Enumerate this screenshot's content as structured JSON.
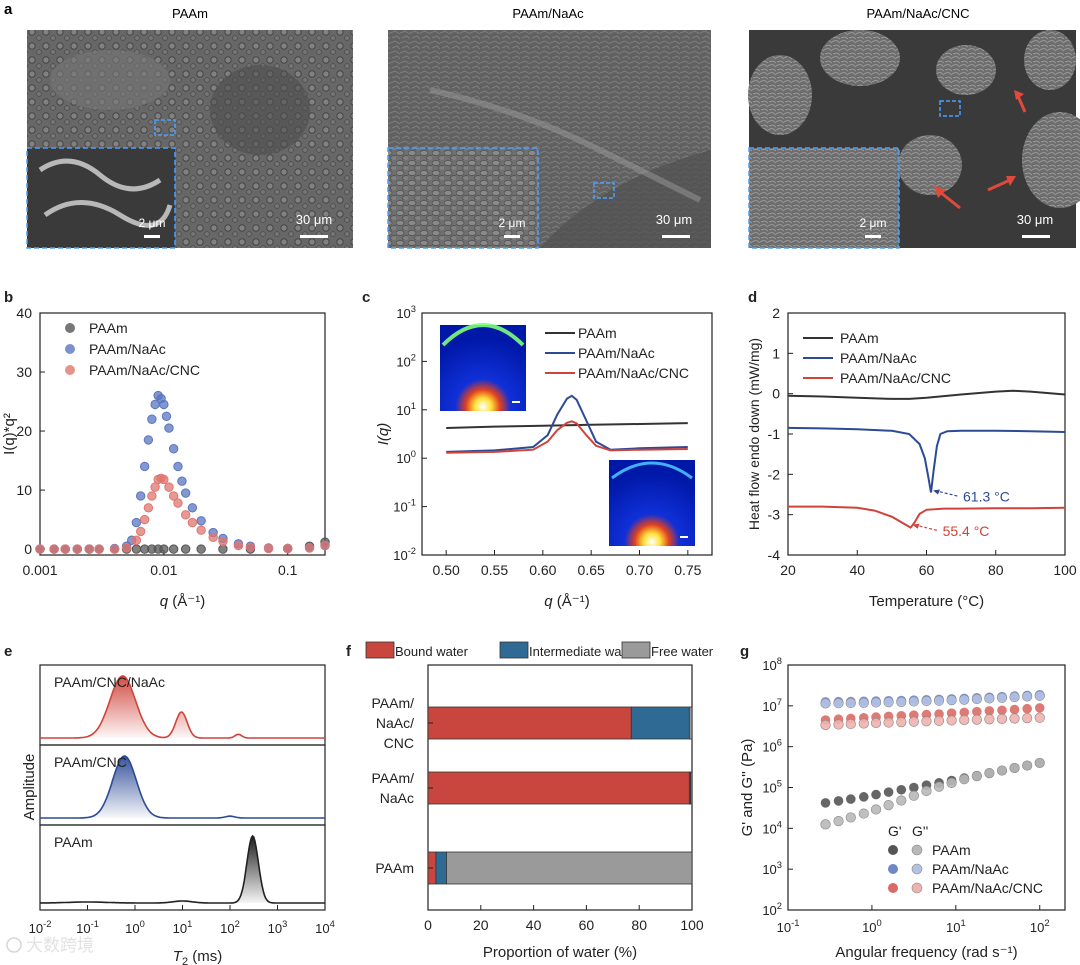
{
  "figure": {
    "panel_a": {
      "label": "a",
      "images": [
        {
          "title": "PAAm",
          "inset_scale": "2 μm",
          "scale": "30 μm"
        },
        {
          "title": "PAAm/NaAc",
          "inset_scale": "2 μm",
          "scale": "30 μm"
        },
        {
          "title": "PAAm/NaAc/CNC",
          "inset_scale": "2 μm",
          "scale": "30 μm"
        }
      ]
    },
    "watermark": "大数跨境"
  },
  "chart_data": [
    {
      "id": "b",
      "type": "scatter",
      "label": "b",
      "xlabel_italic": "q",
      "xlabel_unit": " (Å⁻¹)",
      "ylabel": "I(q)*q²",
      "xscale": "log",
      "xlim": [
        0.001,
        0.2
      ],
      "ylim": [
        -1,
        40
      ],
      "xticks": [
        {
          "v": 0.001,
          "t": "0.001"
        },
        {
          "v": 0.01,
          "t": "0.01"
        },
        {
          "v": 0.1,
          "t": "0.1"
        }
      ],
      "yticks": [
        0,
        10,
        20,
        30,
        40
      ],
      "legend": [
        "PAAm",
        "PAAm/NaAc",
        "PAAm/NaAc/CNC"
      ],
      "colors": [
        "#555555",
        "#5a76c0",
        "#e0766e"
      ],
      "series": [
        {
          "name": "PAAm",
          "x": [
            0.001,
            0.0013,
            0.0016,
            0.002,
            0.0025,
            0.003,
            0.004,
            0.005,
            0.006,
            0.007,
            0.008,
            0.009,
            0.01,
            0.012,
            0.015,
            0.02,
            0.03,
            0.05,
            0.1,
            0.15,
            0.2
          ],
          "y": [
            0,
            0,
            0,
            0,
            0,
            0,
            0,
            0,
            0,
            0,
            0,
            0,
            0,
            0,
            0,
            0,
            0,
            0,
            0.1,
            0.5,
            1.2
          ]
        },
        {
          "name": "PAAm/NaAc",
          "x": [
            0.001,
            0.0013,
            0.0016,
            0.002,
            0.0025,
            0.003,
            0.004,
            0.005,
            0.0055,
            0.006,
            0.0065,
            0.007,
            0.0075,
            0.008,
            0.0085,
            0.009,
            0.0095,
            0.01,
            0.0105,
            0.011,
            0.012,
            0.013,
            0.014,
            0.015,
            0.017,
            0.02,
            0.025,
            0.03,
            0.04,
            0.05,
            0.07,
            0.1,
            0.15,
            0.2
          ],
          "y": [
            0,
            0,
            0,
            0,
            0,
            0,
            0.1,
            0.5,
            1.5,
            4.5,
            9,
            14,
            18.5,
            22,
            24.5,
            26,
            25.5,
            24.5,
            22.5,
            20.5,
            17,
            14,
            11.5,
            9.5,
            7,
            4.8,
            2.8,
            1.8,
            0.9,
            0.5,
            0.2,
            0.1,
            0.2,
            0.6
          ]
        },
        {
          "name": "PAAm/NaAc/CNC",
          "x": [
            0.001,
            0.0013,
            0.0016,
            0.002,
            0.0025,
            0.003,
            0.004,
            0.005,
            0.006,
            0.0065,
            0.007,
            0.0075,
            0.008,
            0.0085,
            0.009,
            0.0095,
            0.01,
            0.011,
            0.012,
            0.013,
            0.015,
            0.017,
            0.02,
            0.025,
            0.03,
            0.04,
            0.05,
            0.07,
            0.1,
            0.15,
            0.2
          ],
          "y": [
            0,
            0,
            0,
            0,
            0,
            0,
            0,
            0.2,
            1.5,
            3,
            5,
            7,
            9,
            10.5,
            11.8,
            12,
            11.8,
            10.5,
            9,
            7.8,
            5.8,
            4.5,
            3.2,
            2,
            1.3,
            0.6,
            0.3,
            0.1,
            0.1,
            0.2,
            0.6
          ]
        }
      ]
    },
    {
      "id": "c",
      "type": "line",
      "label": "c",
      "xlabel_italic": "q",
      "xlabel_unit": " (Å⁻¹)",
      "ylabel": "I(q)",
      "yscale": "log",
      "xlim": [
        0.475,
        0.775
      ],
      "ylim": [
        0.01,
        1000
      ],
      "xticks": [
        0.5,
        0.55,
        0.6,
        0.65,
        0.7,
        0.75
      ],
      "yticks": [
        {
          "v": 0.01,
          "b": "10",
          "e": "-2"
        },
        {
          "v": 0.1,
          "b": "10",
          "e": "-1"
        },
        {
          "v": 1,
          "b": "10",
          "e": "0"
        },
        {
          "v": 10,
          "b": "10",
          "e": "1"
        },
        {
          "v": 100,
          "b": "10",
          "e": "2"
        },
        {
          "v": 1000,
          "b": "10",
          "e": "3"
        }
      ],
      "legend": [
        "PAAm",
        "PAAm/NaAc",
        "PAAm/NaAc/CNC"
      ],
      "colors": [
        "#333333",
        "#2c4a96",
        "#d0433a"
      ],
      "series": [
        {
          "name": "PAAm",
          "x": [
            0.5,
            0.55,
            0.6,
            0.65,
            0.7,
            0.75
          ],
          "y": [
            4.2,
            4.5,
            4.7,
            4.9,
            5.1,
            5.3
          ]
        },
        {
          "name": "PAAm/NaAc",
          "x": [
            0.5,
            0.55,
            0.59,
            0.605,
            0.615,
            0.625,
            0.63,
            0.635,
            0.645,
            0.655,
            0.67,
            0.7,
            0.75
          ],
          "y": [
            1.35,
            1.45,
            1.7,
            3,
            8,
            17,
            19.5,
            16,
            6,
            2.2,
            1.5,
            1.6,
            1.7
          ]
        },
        {
          "name": "PAAm/NaAc/CNC",
          "x": [
            0.5,
            0.55,
            0.59,
            0.605,
            0.615,
            0.625,
            0.63,
            0.635,
            0.645,
            0.655,
            0.67,
            0.7,
            0.75
          ],
          "y": [
            1.3,
            1.35,
            1.5,
            2.2,
            3.8,
            5.4,
            5.8,
            5.2,
            3,
            1.8,
            1.45,
            1.5,
            1.55
          ]
        }
      ]
    },
    {
      "id": "d",
      "type": "line",
      "label": "d",
      "xlabel": "Temperature (°C)",
      "ylabel": "Heat flow endo down (mW/mg)",
      "xlim": [
        20,
        100
      ],
      "ylim": [
        -4,
        2
      ],
      "xticks": [
        20,
        40,
        60,
        80,
        100
      ],
      "yticks": [
        -4,
        -3,
        -2,
        -1,
        0,
        1,
        2
      ],
      "legend": [
        "PAAm",
        "PAAm/NaAc",
        "PAAm/NaAc/CNC"
      ],
      "colors": [
        "#333333",
        "#2c4a96",
        "#d0433a"
      ],
      "annotations": [
        {
          "text": "61.3 °C",
          "x": 61.3,
          "y": -2.45,
          "color": "#2c4a96"
        },
        {
          "text": "55.4 °C",
          "x": 55.4,
          "y": -3.3,
          "color": "#d0433a"
        }
      ],
      "series": [
        {
          "name": "PAAm",
          "x": [
            20,
            30,
            40,
            50,
            55,
            60,
            70,
            80,
            85,
            90,
            100
          ],
          "y": [
            -0.05,
            -0.07,
            -0.1,
            -0.13,
            -0.13,
            -0.1,
            -0.02,
            0.05,
            0.07,
            0.05,
            -0.02
          ]
        },
        {
          "name": "PAAm/NaAc",
          "x": [
            20,
            30,
            40,
            50,
            55,
            58,
            59.5,
            60.5,
            61.3,
            62,
            63,
            64,
            66,
            70,
            80,
            90,
            100
          ],
          "y": [
            -0.85,
            -0.86,
            -0.88,
            -0.92,
            -1.0,
            -1.25,
            -1.6,
            -2.05,
            -2.45,
            -1.95,
            -1.3,
            -1.0,
            -0.93,
            -0.92,
            -0.92,
            -0.93,
            -0.95
          ]
        },
        {
          "name": "PAAm/NaAc/CNC",
          "x": [
            20,
            30,
            40,
            45,
            50,
            53,
            55.4,
            56.5,
            58,
            60,
            65,
            70,
            80,
            90,
            100
          ],
          "y": [
            -2.8,
            -2.8,
            -2.83,
            -2.9,
            -3.05,
            -3.2,
            -3.32,
            -3.2,
            -2.98,
            -2.88,
            -2.85,
            -2.85,
            -2.84,
            -2.84,
            -2.83
          ]
        }
      ]
    },
    {
      "id": "e",
      "type": "area",
      "label": "e",
      "xlabel_italic": "T",
      "xlabel_sub": "2",
      "xlabel_unit": " (ms)",
      "ylabel": "Amplitude",
      "xscale": "log",
      "xlim": [
        0.01,
        10000
      ],
      "xticks": [
        {
          "v": 0.01,
          "b": "10",
          "e": "-2"
        },
        {
          "v": 0.1,
          "b": "10",
          "e": "-1"
        },
        {
          "v": 1,
          "b": "10",
          "e": "0"
        },
        {
          "v": 10,
          "b": "10",
          "e": "1"
        },
        {
          "v": 100,
          "b": "10",
          "e": "2"
        },
        {
          "v": 1000,
          "b": "10",
          "e": "3"
        },
        {
          "v": 10000,
          "b": "10",
          "e": "4"
        }
      ],
      "subplots": [
        {
          "name": "PAAm/CNC/NaAc",
          "color": "#d0433a",
          "peaks": [
            {
              "center": 0.55,
              "height": 1.0,
              "width": 0.27
            },
            {
              "center": 9.5,
              "height": 0.42,
              "width": 0.12
            },
            {
              "center": 150,
              "height": 0.06,
              "width": 0.07
            }
          ]
        },
        {
          "name": "PAAm/CNC",
          "color": "#2c4a96",
          "peaks": [
            {
              "center": 0.6,
              "height": 1.0,
              "width": 0.25
            },
            {
              "center": 100,
              "height": 0.03,
              "width": 0.1
            }
          ]
        },
        {
          "name": "PAAm",
          "color": "#222222",
          "peaks": [
            {
              "center": 300,
              "height": 1.0,
              "width": 0.12
            },
            {
              "center": 10,
              "height": 0.03,
              "width": 0.2
            },
            {
              "center": 0.1,
              "height": 0.015,
              "width": 0.4
            }
          ]
        }
      ]
    },
    {
      "id": "f",
      "type": "bar",
      "label": "f",
      "orientation": "horizontal",
      "stacked": true,
      "xlabel": "Proportion of water (%)",
      "xlim": [
        0,
        100
      ],
      "xticks": [
        0,
        20,
        40,
        60,
        80,
        100
      ],
      "categories": [
        [
          "PAAm/",
          "NaAc/",
          "CNC"
        ],
        [
          "PAAm/",
          "NaAc"
        ],
        [
          "PAAm"
        ]
      ],
      "legend": [
        "Bound water",
        "Intermediate water",
        "Free water"
      ],
      "colors": [
        "#c8463e",
        "#2e6a93",
        "#9a9a9a"
      ],
      "series": [
        {
          "name": "Bound water",
          "values": [
            77,
            99,
            3
          ]
        },
        {
          "name": "Intermediate water",
          "values": [
            22,
            0.5,
            4
          ]
        },
        {
          "name": "Free water",
          "values": [
            1,
            0.5,
            93
          ]
        }
      ]
    },
    {
      "id": "g",
      "type": "scatter",
      "label": "g",
      "xlabel": "Angular frequency (rad s⁻¹)",
      "ylabel": "G' and G'' (Pa)",
      "xscale": "log",
      "yscale": "log",
      "xlim": [
        0.1,
        200
      ],
      "ylim": [
        100,
        100000000
      ],
      "xticks": [
        {
          "v": 0.1,
          "b": "10",
          "e": "-1"
        },
        {
          "v": 1,
          "b": "10",
          "e": "0"
        },
        {
          "v": 10,
          "b": "10",
          "e": "1"
        },
        {
          "v": 100,
          "b": "10",
          "e": "2"
        }
      ],
      "yticks": [
        {
          "v": 100,
          "b": "10",
          "e": "2"
        },
        {
          "v": 1000,
          "b": "10",
          "e": "3"
        },
        {
          "v": 10000,
          "b": "10",
          "e": "4"
        },
        {
          "v": 100000,
          "b": "10",
          "e": "5"
        },
        {
          "v": 1000000,
          "b": "10",
          "e": "6"
        },
        {
          "v": 10000000,
          "b": "10",
          "e": "7"
        },
        {
          "v": 100000000,
          "b": "10",
          "e": "8"
        }
      ],
      "legend_header": [
        "G'",
        "G''"
      ],
      "legend": [
        "PAAm",
        "PAAm/NaAc",
        "PAAm/NaAc/CNC"
      ],
      "colors": [
        "#555555",
        "#6f86c8",
        "#d96b66"
      ],
      "colors_light": [
        "#b8b8b8",
        "#b3c1e6",
        "#efb2ae"
      ],
      "omega": [
        0.28,
        0.4,
        0.56,
        0.8,
        1.12,
        1.58,
        2.24,
        3.16,
        4.47,
        6.31,
        8.91,
        12.6,
        17.8,
        25.1,
        35.5,
        50.1,
        70.8,
        100
      ],
      "series": [
        {
          "name": "PAAm G'",
          "values": [
            42000,
            47000,
            52000,
            59000,
            67000,
            77000,
            88000,
            100000,
            114000,
            130000,
            148000,
            170000,
            195000,
            225000,
            260000,
            300000,
            345000,
            400000
          ]
        },
        {
          "name": "PAAm G''",
          "values": [
            12500,
            15000,
            18500,
            23000,
            29000,
            37000,
            48000,
            63000,
            82000,
            105000,
            130000,
            160000,
            190000,
            225000,
            260000,
            300000,
            345000,
            400000
          ]
        },
        {
          "name": "PAAm/NaAc G'",
          "values": [
            12500000,
            12600000,
            12700000,
            12900000,
            13100000,
            13300000,
            13500000,
            13800000,
            14100000,
            14400000,
            14800000,
            15200000,
            15700000,
            16200000,
            16800000,
            17400000,
            18000000,
            18600000
          ]
        },
        {
          "name": "PAAm/NaAc G''",
          "values": [
            11500000,
            11600000,
            11700000,
            11900000,
            12100000,
            12300000,
            12500000,
            12800000,
            13100000,
            13400000,
            13800000,
            14200000,
            14700000,
            15200000,
            15800000,
            16400000,
            17000000,
            17600000
          ]
        },
        {
          "name": "PAAm/NaAc/CNC G'",
          "values": [
            4500000,
            4700000,
            4900000,
            5100000,
            5300000,
            5500000,
            5700000,
            5900000,
            6100000,
            6300000,
            6600000,
            6900000,
            7200000,
            7500000,
            7800000,
            8100000,
            8500000,
            8900000
          ]
        },
        {
          "name": "PAAm/NaAc/CNC G''",
          "values": [
            3400000,
            3500000,
            3600000,
            3700000,
            3800000,
            3900000,
            4000000,
            4100000,
            4200000,
            4300000,
            4400000,
            4500000,
            4600000,
            4700000,
            4800000,
            4900000,
            5000000,
            5100000
          ]
        }
      ]
    }
  ]
}
